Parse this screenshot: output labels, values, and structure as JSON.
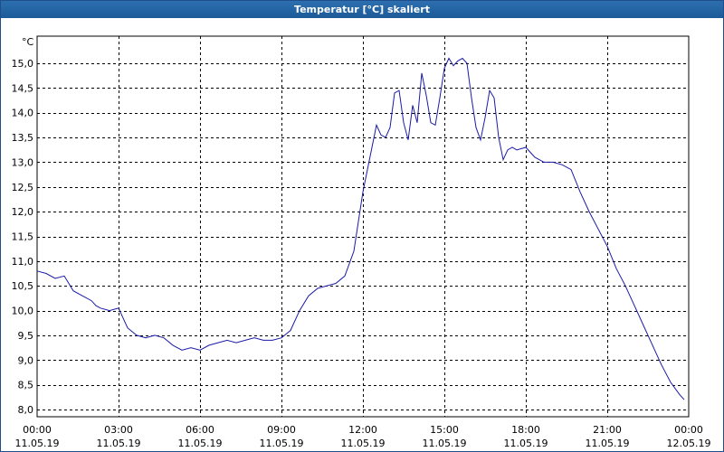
{
  "window": {
    "title": "Temperatur [°C] skaliert"
  },
  "chart_data": {
    "type": "line",
    "title": "Temperatur [°C] skaliert",
    "ylabel": "°C",
    "xlabel": "",
    "ylim": [
      8.0,
      15.25
    ],
    "xlim": [
      "2019-05-11T00:00",
      "2019-05-12T00:00"
    ],
    "grid": true,
    "y_ticks": [
      "8,0",
      "8,5",
      "9,0",
      "9,5",
      "10,0",
      "10,5",
      "11,0",
      "11,5",
      "12,0",
      "12,5",
      "13,0",
      "13,5",
      "14,0",
      "14,5",
      "15,0"
    ],
    "x_ticks": [
      {
        "time": "00:00",
        "date": "11.05.19"
      },
      {
        "time": "03:00",
        "date": "11.05.19"
      },
      {
        "time": "06:00",
        "date": "11.05.19"
      },
      {
        "time": "09:00",
        "date": "11.05.19"
      },
      {
        "time": "12:00",
        "date": "11.05.19"
      },
      {
        "time": "15:00",
        "date": "11.05.19"
      },
      {
        "time": "18:00",
        "date": "11.05.19"
      },
      {
        "time": "21:00",
        "date": "11.05.19"
      },
      {
        "time": "00:00",
        "date": "12.05.19"
      }
    ],
    "series": [
      {
        "color": "#1a1aa8",
        "x": [
          "2019-05-11T00:00",
          "2019-05-11T00:20",
          "2019-05-11T00:40",
          "2019-05-11T01:00",
          "2019-05-11T01:10",
          "2019-05-11T01:20",
          "2019-05-11T01:40",
          "2019-05-11T02:00",
          "2019-05-11T02:10",
          "2019-05-11T02:20",
          "2019-05-11T02:40",
          "2019-05-11T03:00",
          "2019-05-11T03:20",
          "2019-05-11T03:40",
          "2019-05-11T04:00",
          "2019-05-11T04:20",
          "2019-05-11T04:40",
          "2019-05-11T05:00",
          "2019-05-11T05:20",
          "2019-05-11T05:40",
          "2019-05-11T06:00",
          "2019-05-11T06:20",
          "2019-05-11T06:40",
          "2019-05-11T07:00",
          "2019-05-11T07:20",
          "2019-05-11T07:40",
          "2019-05-11T08:00",
          "2019-05-11T08:20",
          "2019-05-11T08:40",
          "2019-05-11T09:00",
          "2019-05-11T09:20",
          "2019-05-11T09:40",
          "2019-05-11T10:00",
          "2019-05-11T10:20",
          "2019-05-11T10:40",
          "2019-05-11T11:00",
          "2019-05-11T11:20",
          "2019-05-11T11:40",
          "2019-05-11T12:00",
          "2019-05-11T12:20",
          "2019-05-11T12:30",
          "2019-05-11T12:40",
          "2019-05-11T12:50",
          "2019-05-11T13:00",
          "2019-05-11T13:10",
          "2019-05-11T13:20",
          "2019-05-11T13:30",
          "2019-05-11T13:40",
          "2019-05-11T13:50",
          "2019-05-11T14:00",
          "2019-05-11T14:10",
          "2019-05-11T14:20",
          "2019-05-11T14:30",
          "2019-05-11T14:40",
          "2019-05-11T14:50",
          "2019-05-11T15:00",
          "2019-05-11T15:10",
          "2019-05-11T15:20",
          "2019-05-11T15:30",
          "2019-05-11T15:40",
          "2019-05-11T15:50",
          "2019-05-11T16:00",
          "2019-05-11T16:10",
          "2019-05-11T16:20",
          "2019-05-11T16:30",
          "2019-05-11T16:40",
          "2019-05-11T16:50",
          "2019-05-11T17:00",
          "2019-05-11T17:10",
          "2019-05-11T17:20",
          "2019-05-11T17:30",
          "2019-05-11T17:40",
          "2019-05-11T18:00",
          "2019-05-11T18:20",
          "2019-05-11T18:40",
          "2019-05-11T19:00",
          "2019-05-11T19:20",
          "2019-05-11T19:40",
          "2019-05-11T20:00",
          "2019-05-11T20:20",
          "2019-05-11T20:40",
          "2019-05-11T21:00",
          "2019-05-11T21:20",
          "2019-05-11T21:40",
          "2019-05-11T22:00",
          "2019-05-11T22:20",
          "2019-05-11T22:40",
          "2019-05-11T23:00",
          "2019-05-11T23:20",
          "2019-05-11T23:40",
          "2019-05-11T23:50"
        ],
        "values": [
          10.8,
          10.75,
          10.65,
          10.7,
          10.55,
          10.4,
          10.3,
          10.2,
          10.1,
          10.05,
          10.0,
          10.05,
          9.65,
          9.5,
          9.45,
          9.5,
          9.45,
          9.3,
          9.2,
          9.25,
          9.2,
          9.3,
          9.35,
          9.4,
          9.35,
          9.4,
          9.45,
          9.4,
          9.4,
          9.45,
          9.6,
          10.0,
          10.3,
          10.45,
          10.5,
          10.55,
          10.7,
          11.2,
          12.4,
          13.3,
          13.75,
          13.55,
          13.5,
          13.7,
          14.4,
          14.45,
          13.8,
          13.45,
          14.15,
          13.8,
          14.8,
          14.35,
          13.8,
          13.75,
          14.3,
          14.9,
          15.1,
          14.95,
          15.05,
          15.1,
          15.0,
          14.3,
          13.7,
          13.45,
          13.9,
          14.45,
          14.3,
          13.5,
          13.05,
          13.25,
          13.3,
          13.25,
          13.3,
          13.1,
          13.0,
          13.0,
          12.95,
          12.85,
          12.4,
          12.0,
          11.65,
          11.3,
          10.85,
          10.5,
          10.1,
          9.7,
          9.3,
          8.9,
          8.55,
          8.3,
          8.2
        ]
      }
    ]
  }
}
